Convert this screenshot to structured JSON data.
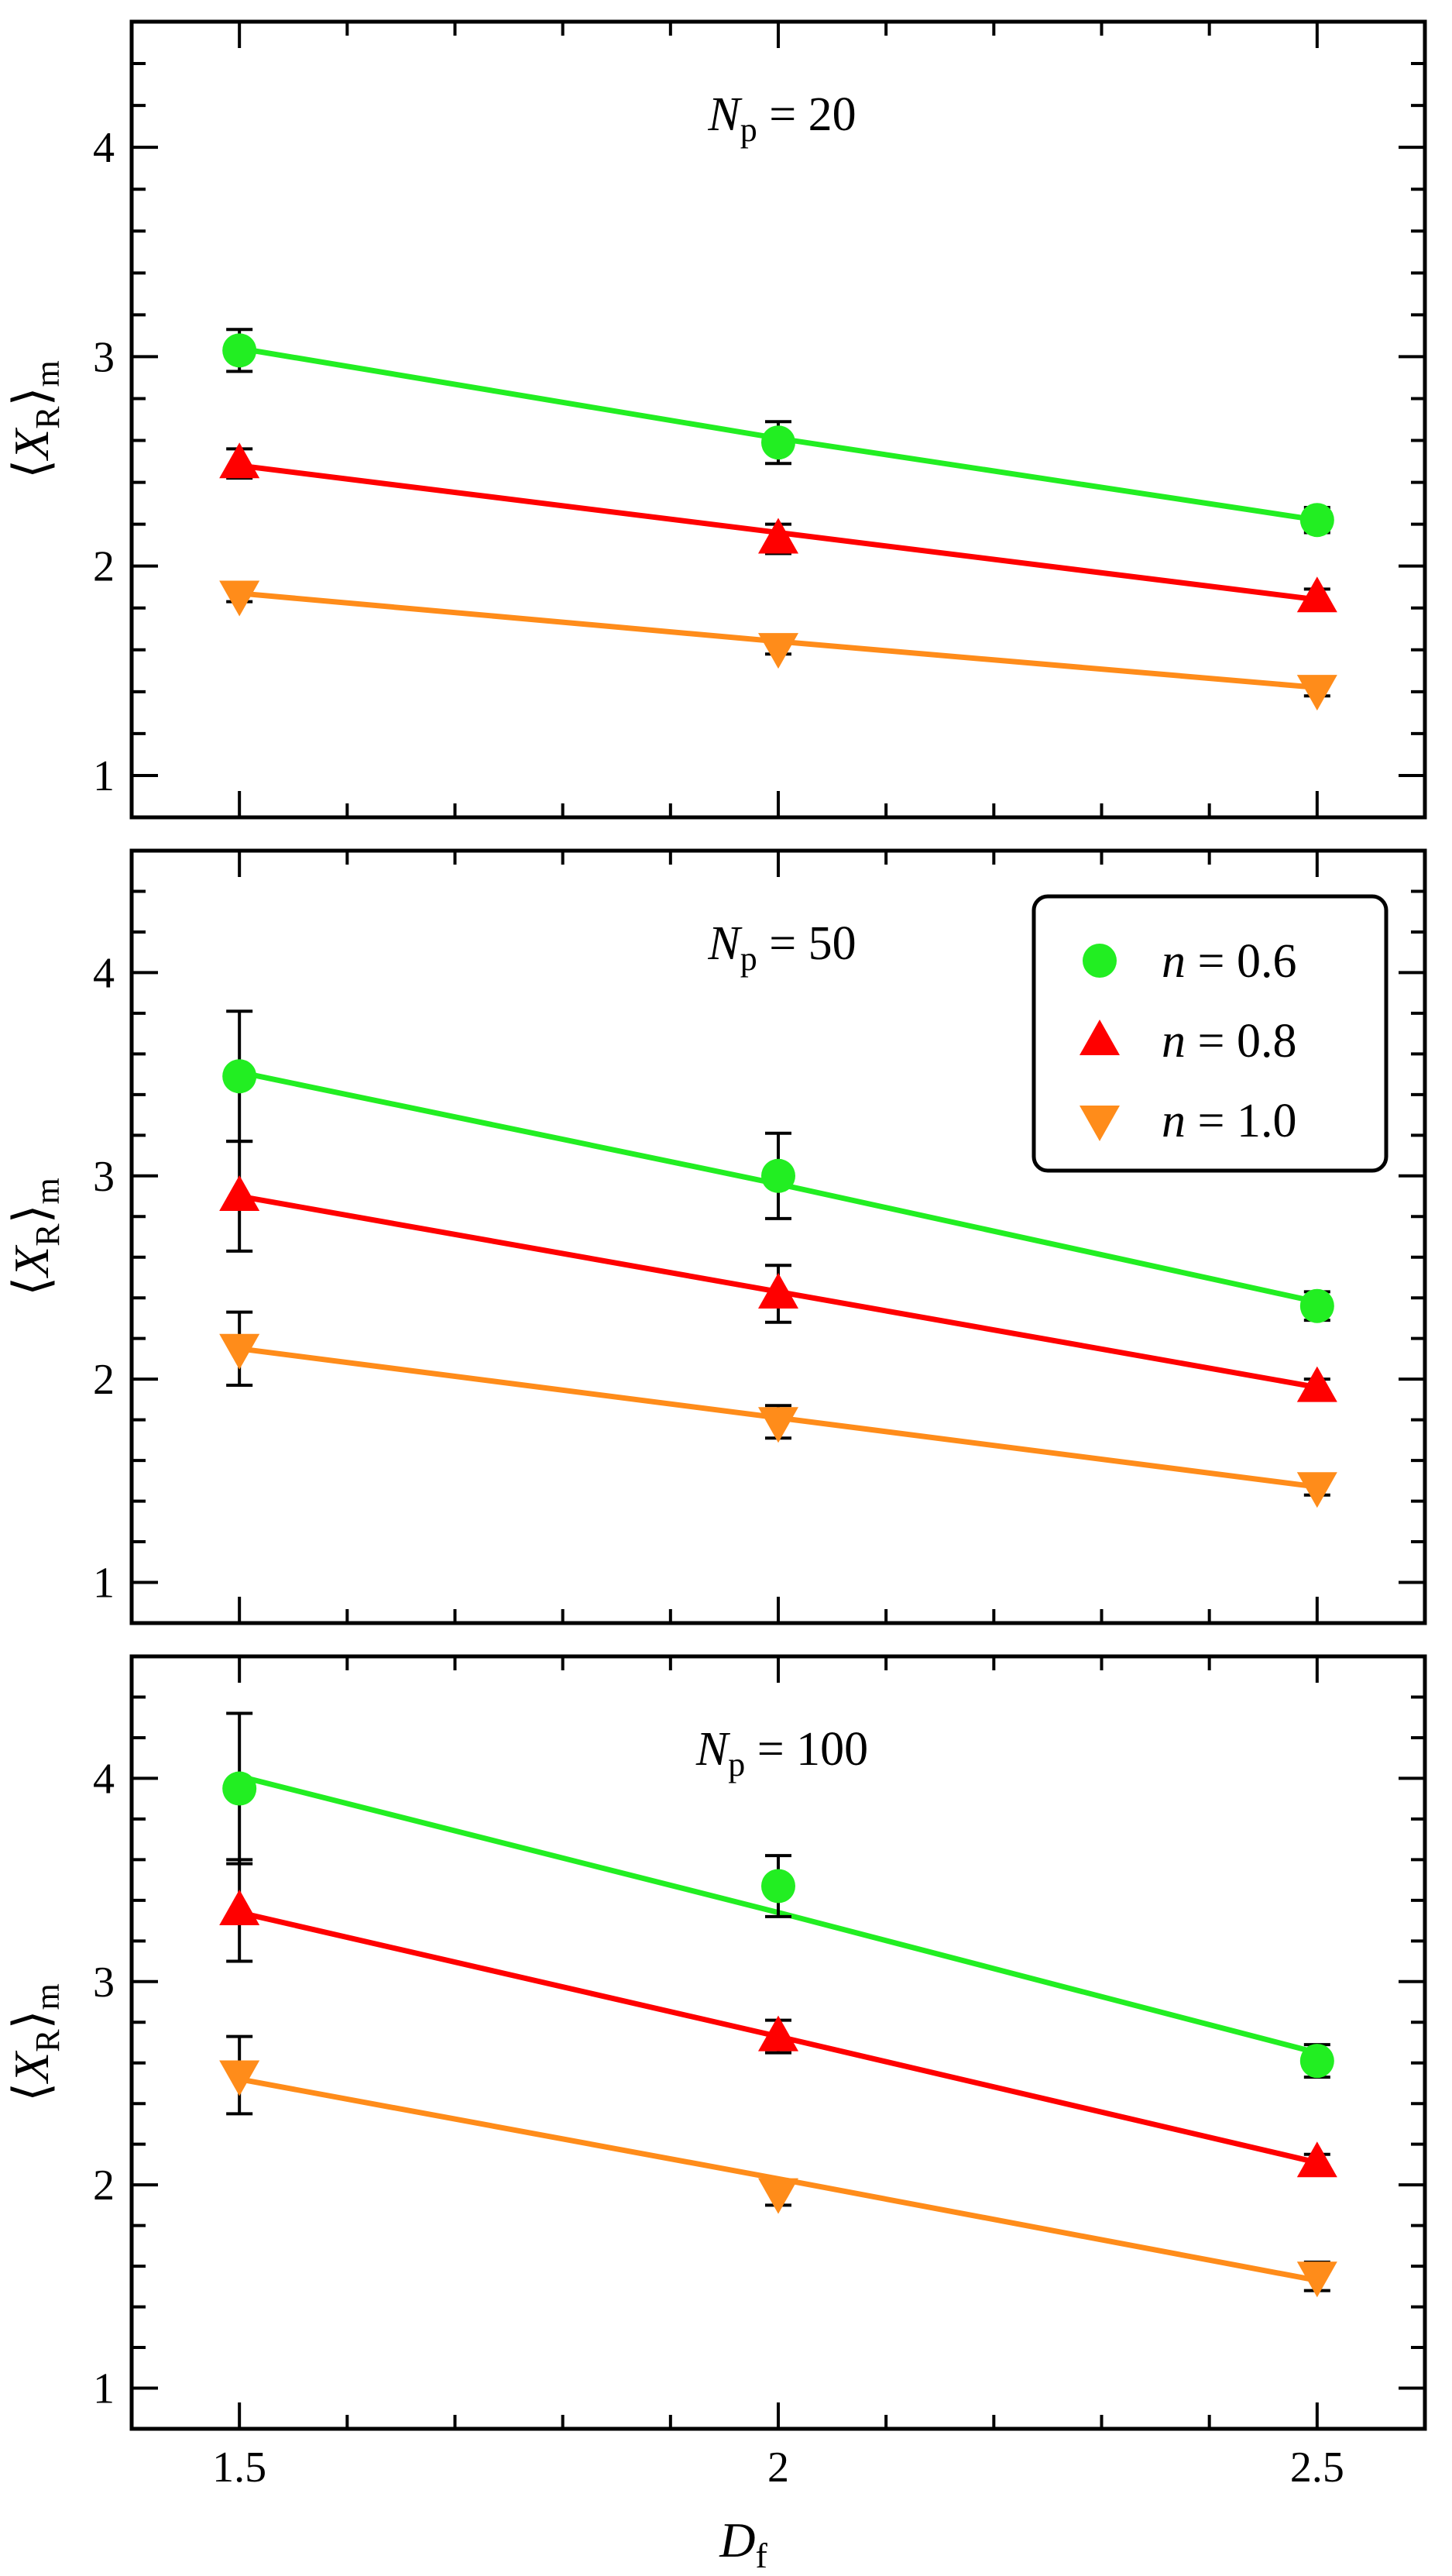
{
  "chart_data": {
    "type": "scatter",
    "layout": "3 stacked panels sharing x-axis",
    "xlabel_main": "D",
    "xlabel_sub": "f",
    "ylabel": {
      "open": "⟨",
      "main": "X",
      "sub1": "R",
      "close": "⟩",
      "sub2": "m"
    },
    "xlim": [
      1.4,
      2.6
    ],
    "ylim": [
      0.8,
      4.6
    ],
    "x_ticks": [
      1.5,
      2,
      2.5
    ],
    "x_tick_labels": [
      "1.5",
      "2",
      "2.5"
    ],
    "y_ticks": [
      1,
      2,
      3,
      4
    ],
    "y_tick_labels": [
      "1",
      "2",
      "3",
      "4"
    ],
    "x": [
      1.5,
      2.0,
      2.5
    ],
    "series_meta": [
      {
        "name": "n = 0.6",
        "var": "n",
        "value": "0.6",
        "color": "#22ee22",
        "marker": "circle"
      },
      {
        "name": "n = 0.8",
        "var": "n",
        "value": "0.8",
        "color": "#ff0000",
        "marker": "triangle-up"
      },
      {
        "name": "n = 1.0",
        "var": "n",
        "value": "1.0",
        "color": "#ff8c1a",
        "marker": "triangle-down"
      }
    ],
    "legend": {
      "location": "top-right of middle panel",
      "entries": [
        "n = 0.6",
        "n = 0.8",
        "n = 1.0"
      ]
    },
    "panels": [
      {
        "title": {
          "var": "N",
          "sub": "p",
          "eq": "= 20"
        },
        "series": [
          {
            "values": [
              3.03,
              2.59,
              2.22
            ],
            "errors": [
              0.1,
              0.1,
              0.06
            ],
            "fit": [
              3.04,
              2.61,
              2.22
            ]
          },
          {
            "values": [
              2.49,
              2.13,
              1.85
            ],
            "errors": [
              0.07,
              0.07,
              0.04
            ],
            "fit": [
              2.48,
              2.16,
              1.84
            ]
          },
          {
            "values": [
              1.86,
              1.61,
              1.41
            ],
            "errors": [
              0.03,
              0.03,
              0.03
            ],
            "fit": [
              1.87,
              1.64,
              1.42
            ]
          }
        ]
      },
      {
        "title": {
          "var": "N",
          "sub": "p",
          "eq": "= 50"
        },
        "series": [
          {
            "values": [
              3.49,
              3.0,
              2.36
            ],
            "errors": [
              0.32,
              0.21,
              0.07
            ],
            "fit": [
              3.51,
              2.96,
              2.38
            ]
          },
          {
            "values": [
              2.9,
              2.42,
              1.96
            ],
            "errors": [
              0.27,
              0.14,
              0.04
            ],
            "fit": [
              2.9,
              2.43,
              1.96
            ]
          },
          {
            "values": [
              2.15,
              1.79,
              1.47
            ],
            "errors": [
              0.18,
              0.08,
              0.04
            ],
            "fit": [
              2.15,
              1.81,
              1.47
            ]
          }
        ]
      },
      {
        "title": {
          "var": "N",
          "sub": "p",
          "eq": "= 100"
        },
        "series": [
          {
            "values": [
              3.95,
              3.47,
              2.61
            ],
            "errors": [
              0.37,
              0.15,
              0.08
            ],
            "fit": [
              4.01,
              3.34,
              2.65
            ]
          },
          {
            "values": [
              3.35,
              2.73,
              2.11
            ],
            "errors": [
              0.25,
              0.08,
              0.04
            ],
            "fit": [
              3.34,
              2.73,
              2.11
            ]
          },
          {
            "values": [
              2.54,
              1.96,
              1.55
            ],
            "errors": [
              0.19,
              0.06,
              0.07
            ],
            "fit": [
              2.52,
              2.03,
              1.53
            ]
          }
        ]
      }
    ]
  }
}
